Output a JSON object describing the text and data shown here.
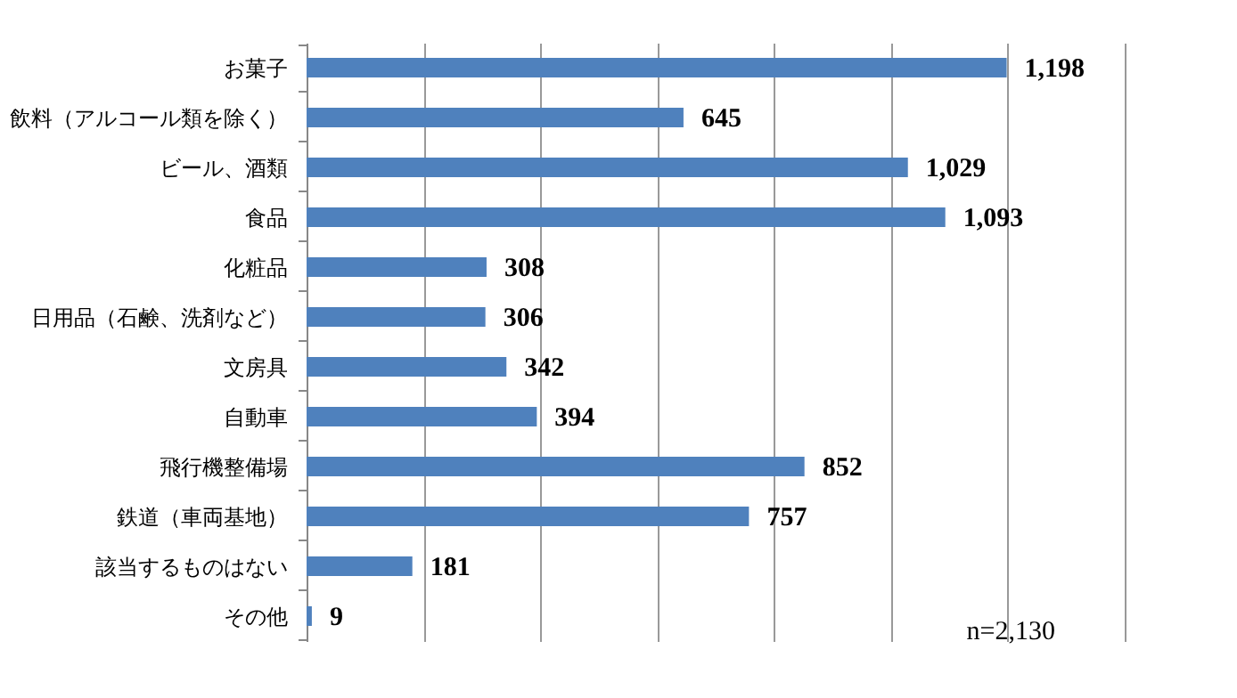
{
  "chart_data": {
    "type": "bar",
    "orientation": "horizontal",
    "categories": [
      "お菓子",
      "飲料（アルコール類を除く）",
      "ビール、酒類",
      "食品",
      "化粧品",
      "日用品（石鹸、洗剤など）",
      "文房具",
      "自動車",
      "飛行機整備場",
      "鉄道（車両基地）",
      "該当するものはない",
      "その他"
    ],
    "values": [
      1198,
      645,
      1029,
      1093,
      308,
      306,
      342,
      394,
      852,
      757,
      181,
      9
    ],
    "color": "#4f81bd",
    "xlim": [
      0,
      1400
    ],
    "xticks": [
      {
        "value": 0,
        "label": null
      },
      {
        "value": 200,
        "label": null
      },
      {
        "value": 400,
        "label": null
      },
      {
        "value": 600,
        "label": null
      },
      {
        "value": 800,
        "label": null
      },
      {
        "value": 1000,
        "label": null
      },
      {
        "value": 1200,
        "label": null
      },
      {
        "value": 1400,
        "label": null
      }
    ],
    "value_labels": [
      "1,198",
      "645",
      "1,029",
      "1,093",
      "308",
      "306",
      "342",
      "394",
      "852",
      "757",
      "181",
      "9"
    ],
    "grid": "x",
    "tick_labels": "y",
    "annotations": [
      "n=2,130"
    ]
  }
}
